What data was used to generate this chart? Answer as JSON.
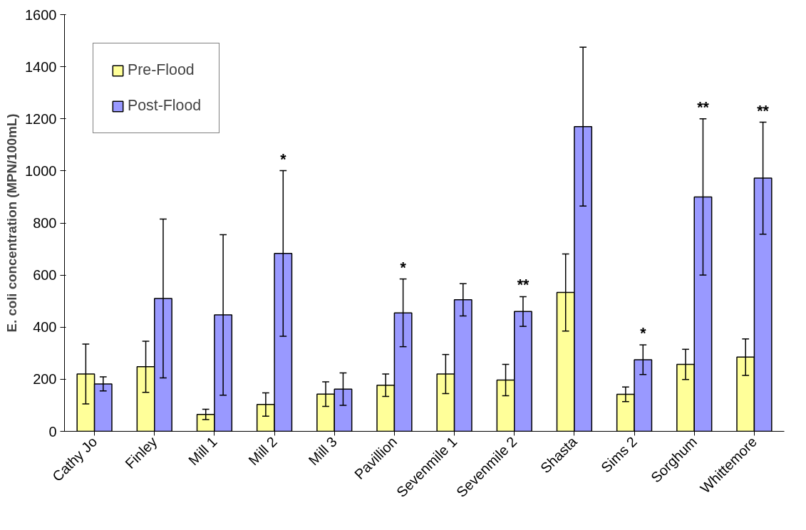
{
  "chart_data": {
    "type": "bar",
    "ylabel": "E. coli concentration (MPN/100mL)",
    "categories": [
      "Cathy Jo",
      "Finley",
      "Mill 1",
      "Mill 2",
      "Mill 3",
      "Pavillion",
      "Sevenmile 1",
      "Sevenmile 2",
      "Shasta",
      "Sims 2",
      "Sorghum",
      "Whittemore"
    ],
    "series": [
      {
        "name": "Pre-Flood",
        "color": "#ffff99",
        "values": [
          220,
          248,
          65,
          103,
          143,
          177,
          220,
          197,
          533,
          142,
          257,
          285
        ],
        "errors": [
          115,
          98,
          20,
          45,
          47,
          43,
          75,
          60,
          148,
          28,
          58,
          70
        ]
      },
      {
        "name": "Post-Flood",
        "color": "#9999ff",
        "values": [
          182,
          510,
          447,
          683,
          162,
          455,
          505,
          460,
          1170,
          275,
          900,
          972
        ],
        "errors": [
          27,
          305,
          308,
          318,
          62,
          130,
          62,
          57,
          305,
          57,
          300,
          215
        ]
      }
    ],
    "ylim": [
      0,
      1600
    ],
    "yticks": [
      0,
      200,
      400,
      600,
      800,
      1000,
      1200,
      1400,
      1600
    ],
    "grid": false,
    "legend": "top left",
    "annotations": [
      "*",
      "*",
      "**",
      "*",
      "**",
      "**"
    ]
  }
}
